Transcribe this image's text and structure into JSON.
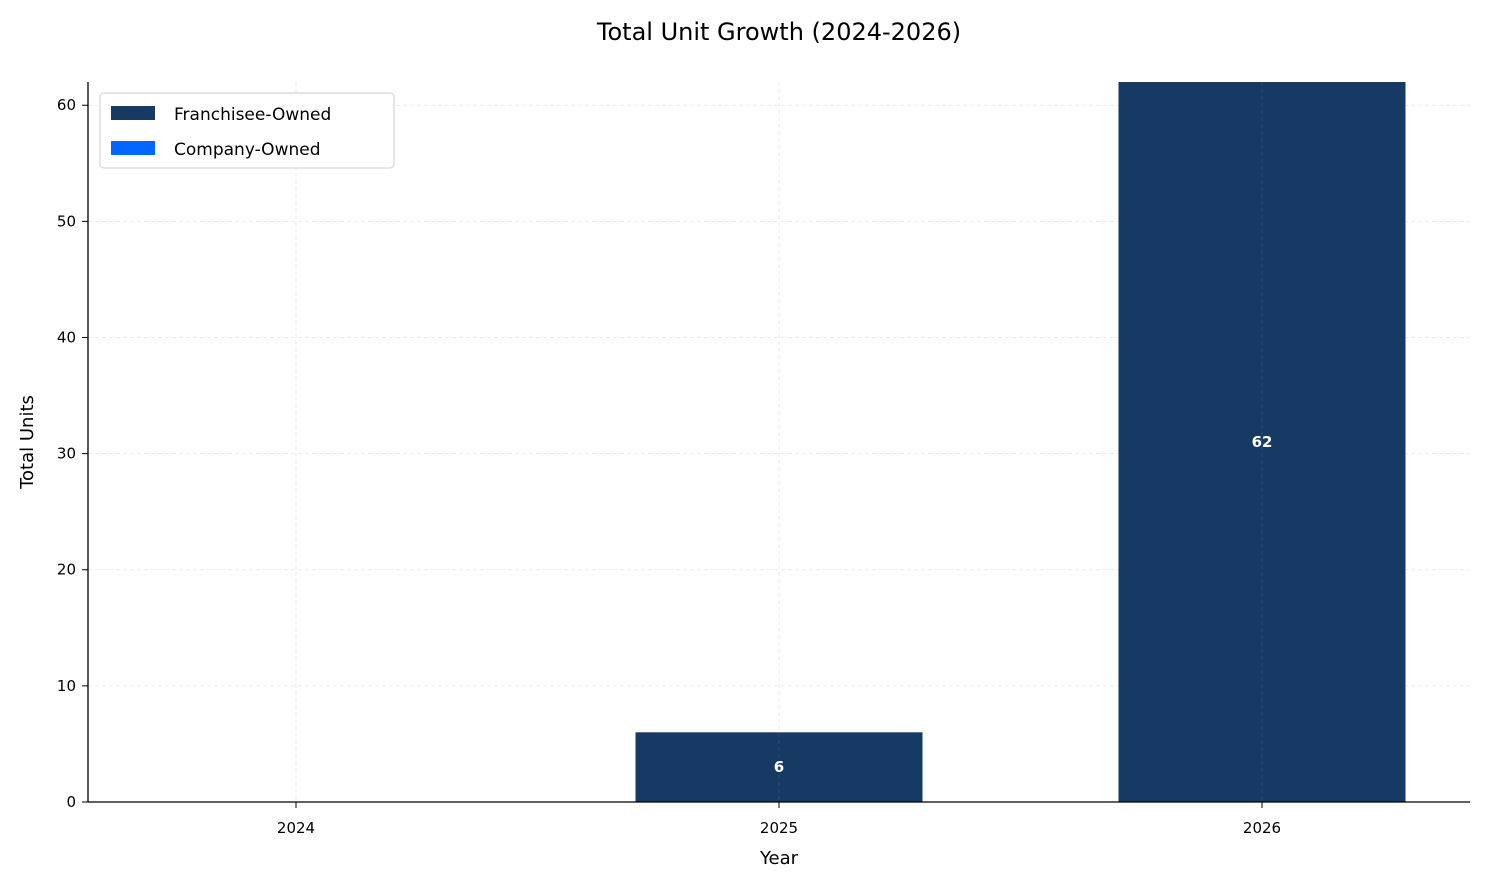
{
  "chart_data": {
    "type": "bar",
    "stacked": true,
    "title": "Total Unit Growth (2024-2026)",
    "xlabel": "Year",
    "ylabel": "Total Units",
    "categories": [
      "2024",
      "2025",
      "2026"
    ],
    "series": [
      {
        "name": "Franchisee-Owned",
        "values": [
          0,
          6,
          62
        ],
        "color": "#163a63"
      },
      {
        "name": "Company-Owned",
        "values": [
          0,
          0,
          0
        ],
        "color": "#0066ff"
      }
    ],
    "totals": [
      0,
      6,
      62
    ],
    "total_labels": [
      "",
      "6",
      "62"
    ],
    "ylim": [
      0,
      62
    ],
    "yticks": [
      0,
      10,
      20,
      30,
      40,
      50,
      60
    ],
    "ytick_labels": [
      "0",
      "10",
      "20",
      "30",
      "40",
      "50",
      "60"
    ],
    "grid": true,
    "legend_position": "top-left"
  }
}
